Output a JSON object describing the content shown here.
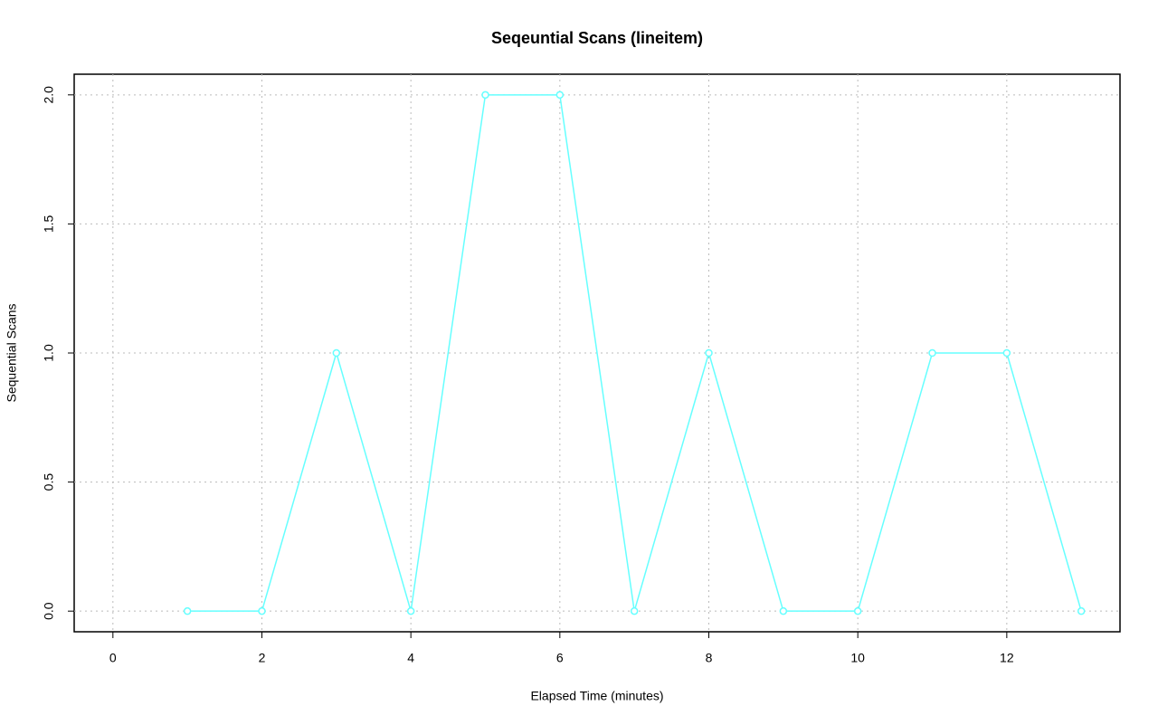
{
  "chart_data": {
    "type": "line",
    "title": "Seqeuntial Scans (lineitem)",
    "x_label": "Elapsed Time (minutes)",
    "y_label": "Sequential Scans",
    "x": [
      1,
      2,
      3,
      4,
      5,
      6,
      7,
      8,
      9,
      10,
      11,
      12,
      13
    ],
    "values": [
      0,
      0,
      1,
      0,
      2,
      2,
      0,
      1,
      0,
      0,
      1,
      1,
      0
    ],
    "color": "#66ffff",
    "xlim": [
      -0.52,
      13.52
    ],
    "xticks": [
      0,
      2,
      4,
      6,
      8,
      10,
      12
    ],
    "ylim": [
      -0.08,
      2.08
    ],
    "yticks": [
      {
        "value": 0,
        "label": "0.0"
      },
      {
        "value": 0.5,
        "label": "0.5"
      },
      {
        "value": 1,
        "label": "1.0"
      },
      {
        "value": 1.5,
        "label": "1.5"
      },
      {
        "value": 2,
        "label": "2.0"
      }
    ],
    "grid": true
  }
}
